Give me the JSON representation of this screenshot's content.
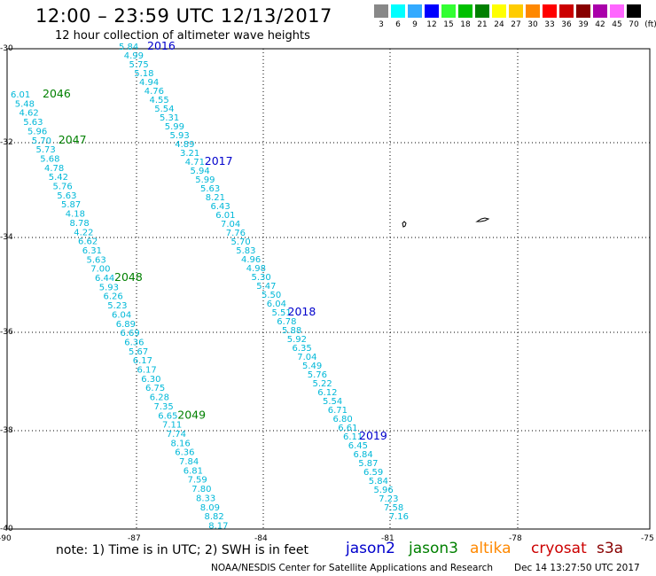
{
  "header": {
    "title": "12:00 – 23:59 UTC 12/13/2017",
    "subtitle": "12 hour collection of altimeter wave heights"
  },
  "color_scale": {
    "unit_label": "(ft)",
    "bins": [
      {
        "label": "3",
        "color": "#888888"
      },
      {
        "label": "6",
        "color": "#00ffff"
      },
      {
        "label": "9",
        "color": "#33aaff"
      },
      {
        "label": "12",
        "color": "#0000ff"
      },
      {
        "label": "15",
        "color": "#33ff33"
      },
      {
        "label": "18",
        "color": "#00c000"
      },
      {
        "label": "21",
        "color": "#008000"
      },
      {
        "label": "24",
        "color": "#ffff00"
      },
      {
        "label": "27",
        "color": "#ffcc00"
      },
      {
        "label": "30",
        "color": "#ff8800"
      },
      {
        "label": "33",
        "color": "#ff0000"
      },
      {
        "label": "36",
        "color": "#cc0000"
      },
      {
        "label": "39",
        "color": "#880000"
      },
      {
        "label": "42",
        "color": "#aa00aa"
      },
      {
        "label": "45",
        "color": "#ff66ff"
      },
      {
        "label": "70",
        "color": "#000000"
      }
    ]
  },
  "axes": {
    "lat_labels": [
      "-30",
      "-32",
      "-34",
      "-36",
      "-38",
      "-40"
    ],
    "lon_labels": [
      "-90",
      "-87",
      "-84",
      "-81",
      "-78",
      "-75"
    ]
  },
  "tracks": [
    {
      "pass": "2016",
      "satellite": "jason2",
      "label_color": "#0000cc",
      "label_row": 0,
      "values": [
        "5.84",
        "4.99",
        "5.75",
        "5.18",
        "4.94",
        "4.76",
        "4.55",
        "5.54",
        "5.31",
        "5.99",
        "5.93",
        "4.89",
        "3.21",
        "4.71",
        "5.94",
        "5.99",
        "5.63",
        "8.21",
        "6.43",
        "6.01",
        "7.04",
        "7.76",
        "5.70",
        "5.83",
        "4.96",
        "4.98",
        "5.30",
        "5.47",
        "5.50",
        "6.04",
        "5.51",
        "6.78",
        "5.88",
        "5.92",
        "6.35",
        "7.04",
        "5.49",
        "5.76",
        "5.22",
        "6.12",
        "5.54",
        "6.71",
        "6.80",
        "6.61",
        "6.11",
        "6.45",
        "6.84",
        "5.87",
        "6.59",
        "5.84",
        "5.96",
        "7.23",
        "7.58",
        "7.16"
      ]
    },
    {
      "pass": "2017",
      "satellite": "jason2",
      "label_color": "#0000cc",
      "label_row": 13
    },
    {
      "pass": "2018",
      "satellite": "jason2",
      "label_color": "#0000cc",
      "label_row": 30
    },
    {
      "pass": "2019",
      "satellite": "jason2",
      "label_color": "#0000cc",
      "label_row": 44
    },
    {
      "pass": "2046",
      "satellite": "jason3",
      "label_color": "#008000",
      "label_row": 0,
      "values": [
        "6.01",
        "5.48",
        "4.62",
        "5.63",
        "5.96",
        "5.70",
        "5.73",
        "5.68",
        "4.78",
        "5.42",
        "5.76",
        "5.63",
        "5.87",
        "4.18",
        "8.78",
        "4.22",
        "6.62",
        "6.31",
        "5.63",
        "7.00",
        "6.44",
        "5.93",
        "6.26",
        "5.23",
        "6.04",
        "6.89",
        "6.69",
        "6.36",
        "5.67",
        "6.17",
        "6.17",
        "6.30",
        "6.75",
        "6.28",
        "7.35",
        "6.65",
        "7.11",
        "7.74",
        "8.16",
        "6.36",
        "7.84",
        "6.81",
        "7.59",
        "7.80",
        "8.33",
        "8.09",
        "8.82",
        "8.17"
      ]
    },
    {
      "pass": "2047",
      "satellite": "jason3",
      "label_color": "#008000",
      "label_row": 5
    },
    {
      "pass": "2048",
      "satellite": "jason3",
      "label_color": "#008000",
      "label_row": 20
    },
    {
      "pass": "2049",
      "satellite": "jason3",
      "label_color": "#008000",
      "label_row": 35
    }
  ],
  "footer": {
    "note": "note:  1) Time is in UTC;  2) SWH is in feet",
    "satellites": [
      {
        "name": "jason2",
        "color": "#0000cc"
      },
      {
        "name": "jason3",
        "color": "#008000"
      },
      {
        "name": "altika",
        "color": "#ff8800"
      },
      {
        "name": "cryosat",
        "color": "#cc0000"
      },
      {
        "name": "s3a",
        "color": "#880000"
      }
    ],
    "credit": "NOAA/NESDIS Center for Satellite Applications and Research",
    "timestamp": "Dec 14 13:27:50 UTC 2017"
  }
}
